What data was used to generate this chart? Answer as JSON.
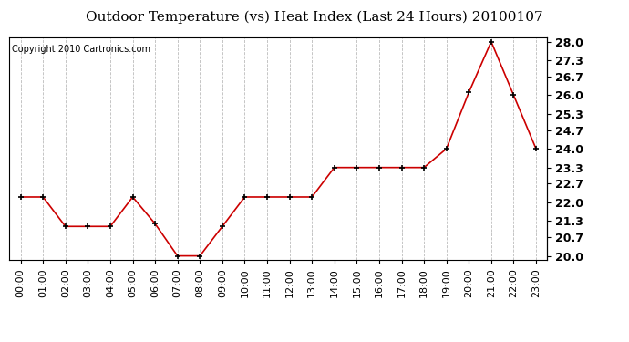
{
  "title": "Outdoor Temperature (vs) Heat Index (Last 24 Hours) 20100107",
  "copyright_text": "Copyright 2010 Cartronics.com",
  "hours": [
    "00:00",
    "01:00",
    "02:00",
    "03:00",
    "04:00",
    "05:00",
    "06:00",
    "07:00",
    "08:00",
    "09:00",
    "10:00",
    "11:00",
    "12:00",
    "13:00",
    "14:00",
    "15:00",
    "16:00",
    "17:00",
    "18:00",
    "19:00",
    "20:00",
    "21:00",
    "22:00",
    "23:00"
  ],
  "values": [
    22.2,
    22.2,
    21.1,
    21.1,
    21.1,
    22.2,
    21.2,
    20.0,
    20.0,
    21.1,
    22.2,
    22.2,
    22.2,
    22.2,
    23.3,
    23.3,
    23.3,
    23.3,
    23.3,
    24.0,
    26.1,
    28.0,
    26.0,
    24.0
  ],
  "y_ticks": [
    20.0,
    20.7,
    21.3,
    22.0,
    22.7,
    23.3,
    24.0,
    24.7,
    25.3,
    26.0,
    26.7,
    27.3,
    28.0
  ],
  "ylim": [
    19.85,
    28.15
  ],
  "line_color": "#cc0000",
  "marker_color": "#000000",
  "background_color": "#ffffff",
  "grid_color": "#bbbbbb",
  "title_fontsize": 11,
  "copyright_fontsize": 7,
  "tick_fontsize": 8,
  "ytick_fontsize": 9
}
